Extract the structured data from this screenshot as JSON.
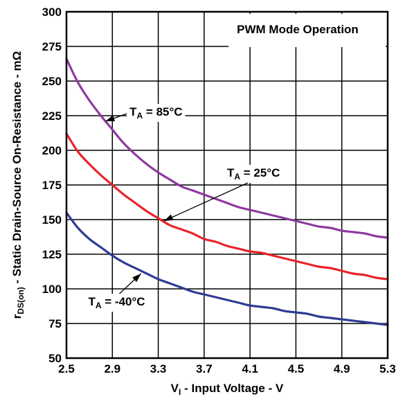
{
  "chart_data": {
    "type": "line",
    "title": "PWM Mode Operation",
    "xlabel": {
      "main": "V",
      "sub": "I",
      "rest": " - Input Voltage - V"
    },
    "ylabel": {
      "main": "r",
      "sub": "DS(on)",
      "rest": " - Static Drain-Source On-Resistance - mΩ"
    },
    "xlim": [
      2.5,
      5.3
    ],
    "ylim": [
      50,
      300
    ],
    "xticks": [
      2.5,
      2.9,
      3.3,
      3.7,
      4.1,
      4.5,
      4.9,
      5.3
    ],
    "xtick_labels": [
      "2.5",
      "2.9",
      "3.3",
      "3.7",
      "4.1",
      "4.5",
      "4.9",
      "5.3"
    ],
    "yticks": [
      50,
      75,
      100,
      125,
      150,
      175,
      200,
      225,
      250,
      275,
      300
    ],
    "ytick_labels": [
      "50",
      "75",
      "100",
      "125",
      "150",
      "175",
      "200",
      "225",
      "250",
      "275",
      "300"
    ],
    "grid": true,
    "series": [
      {
        "name": "T_A = 85°C",
        "color": "#8e3a9e",
        "x": [
          2.5,
          2.6,
          2.7,
          2.8,
          2.9,
          3.0,
          3.1,
          3.2,
          3.3,
          3.4,
          3.5,
          3.6,
          3.7,
          3.8,
          3.9,
          4.0,
          4.1,
          4.2,
          4.3,
          4.4,
          4.5,
          4.6,
          4.7,
          4.8,
          4.9,
          5.0,
          5.1,
          5.2,
          5.3
        ],
        "y": [
          266,
          249,
          236,
          225,
          215,
          205,
          197,
          190,
          184,
          179,
          174,
          171,
          168,
          165,
          162,
          159,
          157,
          155,
          153,
          151,
          149,
          147,
          145,
          144,
          142,
          141,
          140,
          138,
          137
        ]
      },
      {
        "name": "T_A = 25°C",
        "color": "#e8232b",
        "x": [
          2.5,
          2.6,
          2.7,
          2.8,
          2.9,
          3.0,
          3.1,
          3.2,
          3.3,
          3.4,
          3.5,
          3.6,
          3.7,
          3.8,
          3.9,
          4.0,
          4.1,
          4.2,
          4.3,
          4.4,
          4.5,
          4.6,
          4.7,
          4.8,
          4.9,
          5.0,
          5.1,
          5.2,
          5.3
        ],
        "y": [
          212,
          199,
          190,
          182,
          175,
          168,
          162,
          156,
          151,
          146,
          143,
          140,
          136,
          134,
          131,
          129,
          127,
          126,
          124,
          122,
          120,
          118,
          116,
          115,
          113,
          111,
          110,
          108,
          107
        ]
      },
      {
        "name": "T_A = -40°C",
        "color": "#2e3b94",
        "x": [
          2.5,
          2.6,
          2.7,
          2.8,
          2.9,
          3.0,
          3.1,
          3.2,
          3.3,
          3.4,
          3.5,
          3.6,
          3.7,
          3.8,
          3.9,
          4.0,
          4.1,
          4.2,
          4.3,
          4.4,
          4.5,
          4.6,
          4.7,
          4.8,
          4.9,
          5.0,
          5.1,
          5.2,
          5.3
        ],
        "y": [
          155,
          144,
          136,
          130,
          124,
          119,
          115,
          111,
          107,
          104,
          101,
          98,
          96,
          94,
          92,
          90,
          88,
          87,
          86,
          84,
          83,
          82,
          80,
          79,
          78,
          77,
          76,
          75,
          74
        ]
      }
    ],
    "annotations": [
      {
        "main": "T",
        "sub": "A",
        "rest": " = 85°C"
      },
      {
        "main": "T",
        "sub": "A",
        "rest": " = 25°C"
      },
      {
        "main": "T",
        "sub": "A",
        "rest": " = -40°C"
      }
    ]
  }
}
